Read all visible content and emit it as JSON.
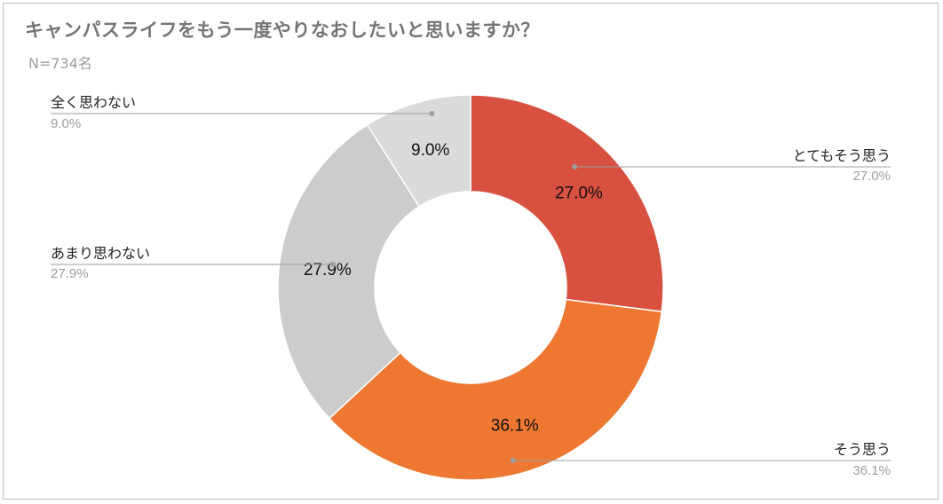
{
  "title": "キャンパスライフをもう一度やりなおしたいと思いますか？",
  "subtitle": "N=734名",
  "chart_data": {
    "type": "pie",
    "donut": true,
    "categories": [
      "とてもそう思う",
      "そう思う",
      "あまり思わない",
      "全く思わない"
    ],
    "values": [
      27.0,
      36.1,
      27.9,
      9.0
    ],
    "colors": [
      "#d85040",
      "#ee7832",
      "#cccccc",
      "#dadada"
    ],
    "value_labels": [
      "27.0%",
      "36.1%",
      "27.9%",
      "9.0%"
    ],
    "legend_values": [
      "27.0%",
      "36.1%",
      "27.9%",
      "9.0%"
    ]
  }
}
